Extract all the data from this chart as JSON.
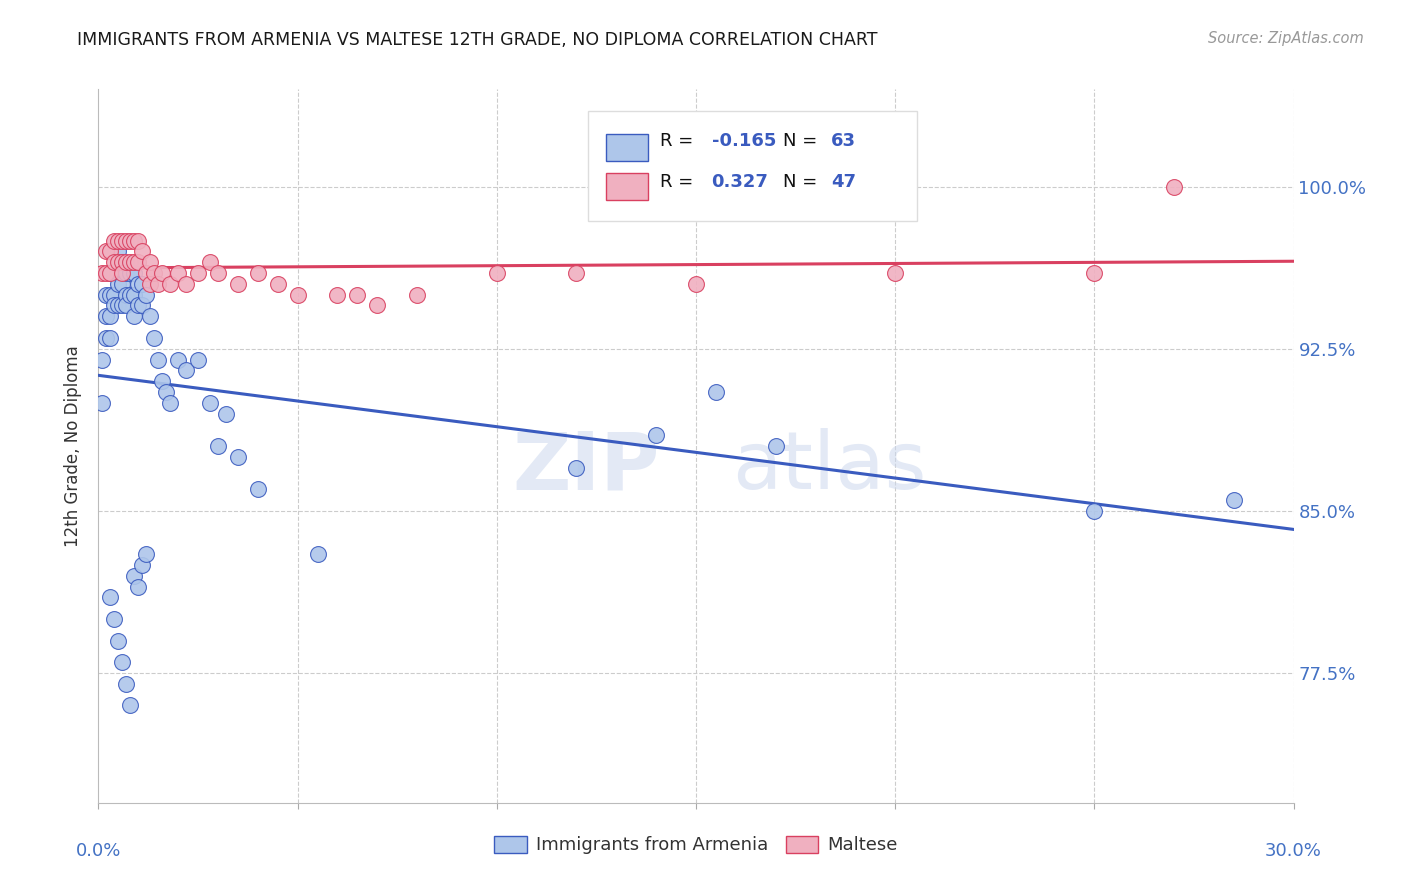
{
  "title": "IMMIGRANTS FROM ARMENIA VS MALTESE 12TH GRADE, NO DIPLOMA CORRELATION CHART",
  "source": "Source: ZipAtlas.com",
  "ylabel": "12th Grade, No Diploma",
  "ytick_labels": [
    "100.0%",
    "92.5%",
    "85.0%",
    "77.5%"
  ],
  "ytick_values": [
    1.0,
    0.925,
    0.85,
    0.775
  ],
  "xlim": [
    0.0,
    0.3
  ],
  "ylim": [
    0.715,
    1.045
  ],
  "color_armenia": "#aec6ea",
  "color_maltese": "#f0b0c0",
  "color_armenia_line": "#3a5bbf",
  "color_maltese_line": "#d94060",
  "color_title": "#1a1a1a",
  "color_source": "#999999",
  "color_yticks": "#4472c4",
  "color_xticks": "#4472c4",
  "watermark_zip": "ZIP",
  "watermark_atlas": "atlas",
  "armenia_x": [
    0.001,
    0.001,
    0.002,
    0.002,
    0.002,
    0.003,
    0.003,
    0.003,
    0.003,
    0.004,
    0.004,
    0.004,
    0.005,
    0.005,
    0.005,
    0.005,
    0.006,
    0.006,
    0.006,
    0.007,
    0.007,
    0.007,
    0.008,
    0.008,
    0.009,
    0.009,
    0.009,
    0.01,
    0.01,
    0.011,
    0.011,
    0.012,
    0.013,
    0.014,
    0.015,
    0.016,
    0.017,
    0.018,
    0.02,
    0.022,
    0.025,
    0.028,
    0.03,
    0.032,
    0.035,
    0.04,
    0.055,
    0.12,
    0.14,
    0.155,
    0.17,
    0.25,
    0.285,
    0.003,
    0.004,
    0.005,
    0.006,
    0.007,
    0.008,
    0.009,
    0.01,
    0.011,
    0.012
  ],
  "armenia_y": [
    0.92,
    0.9,
    0.95,
    0.94,
    0.93,
    0.96,
    0.95,
    0.94,
    0.93,
    0.96,
    0.95,
    0.945,
    0.97,
    0.96,
    0.955,
    0.945,
    0.965,
    0.955,
    0.945,
    0.96,
    0.95,
    0.945,
    0.96,
    0.95,
    0.96,
    0.95,
    0.94,
    0.955,
    0.945,
    0.955,
    0.945,
    0.95,
    0.94,
    0.93,
    0.92,
    0.91,
    0.905,
    0.9,
    0.92,
    0.915,
    0.92,
    0.9,
    0.88,
    0.895,
    0.875,
    0.86,
    0.83,
    0.87,
    0.885,
    0.905,
    0.88,
    0.85,
    0.855,
    0.81,
    0.8,
    0.79,
    0.78,
    0.77,
    0.76,
    0.82,
    0.815,
    0.825,
    0.83
  ],
  "maltese_x": [
    0.001,
    0.002,
    0.002,
    0.003,
    0.003,
    0.004,
    0.004,
    0.005,
    0.005,
    0.006,
    0.006,
    0.006,
    0.007,
    0.007,
    0.008,
    0.008,
    0.009,
    0.009,
    0.01,
    0.01,
    0.011,
    0.012,
    0.013,
    0.013,
    0.014,
    0.015,
    0.016,
    0.018,
    0.02,
    0.022,
    0.025,
    0.028,
    0.03,
    0.035,
    0.04,
    0.045,
    0.05,
    0.06,
    0.065,
    0.07,
    0.08,
    0.1,
    0.12,
    0.15,
    0.2,
    0.25,
    0.27
  ],
  "maltese_y": [
    0.96,
    0.97,
    0.96,
    0.97,
    0.96,
    0.975,
    0.965,
    0.975,
    0.965,
    0.975,
    0.965,
    0.96,
    0.975,
    0.965,
    0.975,
    0.965,
    0.975,
    0.965,
    0.975,
    0.965,
    0.97,
    0.96,
    0.965,
    0.955,
    0.96,
    0.955,
    0.96,
    0.955,
    0.96,
    0.955,
    0.96,
    0.965,
    0.96,
    0.955,
    0.96,
    0.955,
    0.95,
    0.95,
    0.95,
    0.945,
    0.95,
    0.96,
    0.96,
    0.955,
    0.96,
    0.96,
    1.0
  ]
}
